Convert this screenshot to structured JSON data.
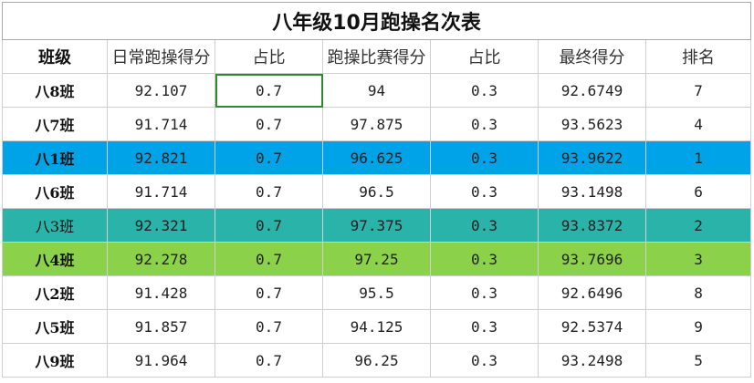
{
  "title": "八年级10月跑操名次表",
  "columns": [
    "班级",
    "日常跑操得分",
    "占比",
    "跑操比赛得分",
    "占比",
    "最终得分",
    "排名"
  ],
  "rows": [
    {
      "class": "八8班",
      "daily": "92.107",
      "ratio1": "0.7",
      "race": "94",
      "ratio2": "0.3",
      "final": "92.6749",
      "rank": "7"
    },
    {
      "class": "八7班",
      "daily": "91.714",
      "ratio1": "0.7",
      "race": "97.875",
      "ratio2": "0.3",
      "final": "93.5623",
      "rank": "4"
    },
    {
      "class": "八1班",
      "daily": "92.821",
      "ratio1": "0.7",
      "race": "96.625",
      "ratio2": "0.3",
      "final": "93.9622",
      "rank": "1"
    },
    {
      "class": "八6班",
      "daily": "91.714",
      "ratio1": "0.7",
      "race": "96.5",
      "ratio2": "0.3",
      "final": "93.1498",
      "rank": "6"
    },
    {
      "class": "八3班",
      "daily": "92.321",
      "ratio1": "0.7",
      "race": "97.375",
      "ratio2": "0.3",
      "final": "93.8372",
      "rank": "2"
    },
    {
      "class": "八4班",
      "daily": "92.278",
      "ratio1": "0.7",
      "race": "97.25",
      "ratio2": "0.3",
      "final": "93.7696",
      "rank": "3"
    },
    {
      "class": "八2班",
      "daily": "91.428",
      "ratio1": "0.7",
      "race": "95.5",
      "ratio2": "0.3",
      "final": "92.6496",
      "rank": "8"
    },
    {
      "class": "八5班",
      "daily": "91.857",
      "ratio1": "0.7",
      "race": "94.125",
      "ratio2": "0.3",
      "final": "92.5374",
      "rank": "9"
    },
    {
      "class": "八9班",
      "daily": "91.964",
      "ratio1": "0.7",
      "race": "96.25",
      "ratio2": "0.3",
      "final": "93.2498",
      "rank": "5"
    }
  ],
  "highlight_colors": {
    "rank1": "#00a2e8",
    "rank2": "#2ab3a8",
    "rank3": "#8cd14a",
    "selection": "#2f8d2f"
  }
}
